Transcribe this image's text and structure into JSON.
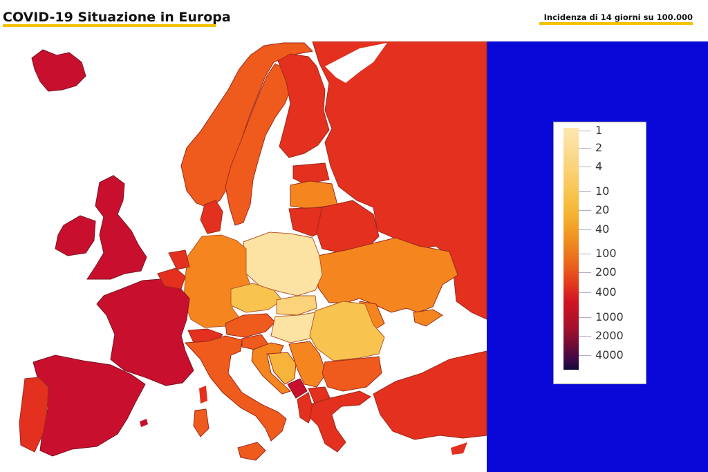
{
  "header": {
    "title": "COVID-19 Situazione in Europa",
    "subtitle": "Incidenza di 14 giorni su 100.000"
  },
  "legend": {
    "labels": [
      "1",
      "2",
      "4",
      "10",
      "20",
      "40",
      "100",
      "200",
      "400",
      "1000",
      "2000",
      "4000"
    ]
  },
  "colors": {
    "background_panel": "#0a08d8",
    "sea": "#ffffff",
    "accent_underline": "#f2c100",
    "very_high": "#c8102e",
    "high": "#e3301f",
    "medium_high": "#ef5a1d",
    "medium": "#f5861f",
    "low": "#f7b43a",
    "very_low": "#fde3a3"
  }
}
